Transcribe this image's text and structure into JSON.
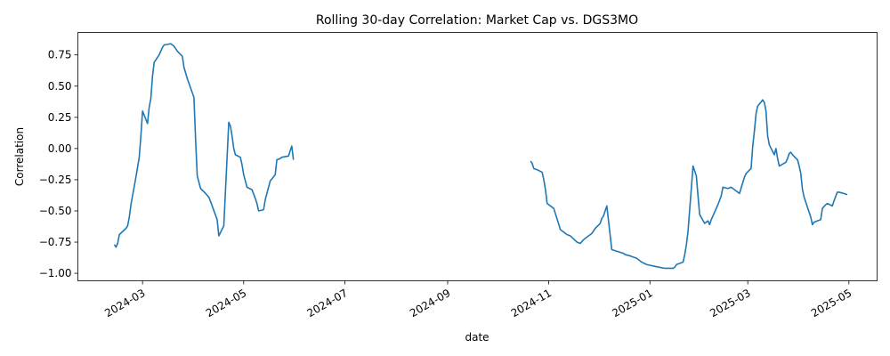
{
  "chart_data": {
    "type": "line",
    "title": "Rolling 30-day Correlation: Market Cap vs. DGS3MO",
    "xlabel": "date",
    "ylabel": "Correlation",
    "xlim": [
      "2024-01-22",
      "2025-05-18"
    ],
    "ylim": [
      -1.06,
      0.93
    ],
    "grid": false,
    "line_color": "#1f77b4",
    "x_ticks": [
      {
        "date": "2024-03-01",
        "label": "2024-03"
      },
      {
        "date": "2024-05-01",
        "label": "2024-05"
      },
      {
        "date": "2024-07-01",
        "label": "2024-07"
      },
      {
        "date": "2024-09-01",
        "label": "2024-09"
      },
      {
        "date": "2024-11-01",
        "label": "2024-11"
      },
      {
        "date": "2025-01-01",
        "label": "2025-01"
      },
      {
        "date": "2025-03-01",
        "label": "2025-03"
      },
      {
        "date": "2025-05-01",
        "label": "2025-05"
      }
    ],
    "y_ticks": [
      {
        "value": 0.75,
        "label": "0.75"
      },
      {
        "value": 0.5,
        "label": "0.50"
      },
      {
        "value": 0.25,
        "label": "0.25"
      },
      {
        "value": 0.0,
        "label": "0.00"
      },
      {
        "value": -0.25,
        "label": "−0.25"
      },
      {
        "value": -0.5,
        "label": "−0.50"
      },
      {
        "value": -0.75,
        "label": "−0.75"
      },
      {
        "value": -1.0,
        "label": "−1.00"
      }
    ],
    "segments": [
      {
        "x": [
          "2024-02-13",
          "2024-02-14",
          "2024-02-15",
          "2024-02-16",
          "2024-02-20",
          "2024-02-21",
          "2024-02-22",
          "2024-02-23",
          "2024-02-26",
          "2024-02-27",
          "2024-02-28",
          "2024-02-29",
          "2024-03-01",
          "2024-03-04",
          "2024-03-05",
          "2024-03-06",
          "2024-03-07",
          "2024-03-08",
          "2024-03-11",
          "2024-03-12",
          "2024-03-13",
          "2024-03-14",
          "2024-03-18",
          "2024-03-19",
          "2024-03-20",
          "2024-03-22",
          "2024-03-25",
          "2024-03-26",
          "2024-03-28",
          "2024-04-01",
          "2024-04-02",
          "2024-04-03",
          "2024-04-05",
          "2024-04-08",
          "2024-04-10",
          "2024-04-12",
          "2024-04-15",
          "2024-04-16",
          "2024-04-19",
          "2024-04-22",
          "2024-04-23",
          "2024-04-24",
          "2024-04-25",
          "2024-04-26",
          "2024-04-29",
          "2024-04-30",
          "2024-05-01",
          "2024-05-03",
          "2024-05-06",
          "2024-05-08",
          "2024-05-09",
          "2024-05-10",
          "2024-05-13",
          "2024-05-14",
          "2024-05-16",
          "2024-05-17",
          "2024-05-20",
          "2024-05-21",
          "2024-05-23",
          "2024-05-24",
          "2024-05-28",
          "2024-05-30",
          "2024-05-31"
        ],
        "y": [
          -0.77,
          -0.79,
          -0.76,
          -0.69,
          -0.64,
          -0.62,
          -0.55,
          -0.45,
          -0.23,
          -0.15,
          -0.07,
          0.1,
          0.3,
          0.2,
          0.33,
          0.4,
          0.58,
          0.69,
          0.75,
          0.78,
          0.81,
          0.83,
          0.84,
          0.83,
          0.82,
          0.78,
          0.74,
          0.65,
          0.56,
          0.41,
          0.07,
          -0.22,
          -0.32,
          -0.36,
          -0.39,
          -0.46,
          -0.57,
          -0.7,
          -0.62,
          0.21,
          0.18,
          0.1,
          0.0,
          -0.05,
          -0.07,
          -0.13,
          -0.21,
          -0.31,
          -0.33,
          -0.4,
          -0.44,
          -0.5,
          -0.49,
          -0.41,
          -0.31,
          -0.26,
          -0.21,
          -0.09,
          -0.08,
          -0.07,
          -0.06,
          0.02,
          -0.09
        ]
      },
      {
        "x": [
          "2024-10-21",
          "2024-10-22",
          "2024-10-23",
          "2024-10-25",
          "2024-10-28",
          "2024-10-29",
          "2024-10-30",
          "2024-10-31",
          "2024-11-04",
          "2024-11-08",
          "2024-11-12",
          "2024-11-14",
          "2024-11-18",
          "2024-11-20",
          "2024-11-22",
          "2024-11-25",
          "2024-11-27",
          "2024-11-29",
          "2024-12-02",
          "2024-12-03",
          "2024-12-04",
          "2024-12-06",
          "2024-12-09",
          "2024-12-16",
          "2024-12-17",
          "2024-12-20",
          "2024-12-24",
          "2024-12-27",
          "2024-12-30",
          "2025-01-06",
          "2025-01-10",
          "2025-01-15",
          "2025-01-16",
          "2025-01-17",
          "2025-01-21",
          "2025-01-22",
          "2025-01-23",
          "2025-01-24",
          "2025-01-27",
          "2025-01-29",
          "2025-01-30",
          "2025-01-31",
          "2025-02-03",
          "2025-02-05",
          "2025-02-06",
          "2025-02-07",
          "2025-02-10",
          "2025-02-11",
          "2025-02-13",
          "2025-02-14",
          "2025-02-17",
          "2025-02-19",
          "2025-02-21",
          "2025-02-24",
          "2025-02-27",
          "2025-02-28",
          "2025-03-03",
          "2025-03-04",
          "2025-03-05",
          "2025-03-06",
          "2025-03-07",
          "2025-03-10",
          "2025-03-11",
          "2025-03-12",
          "2025-03-13",
          "2025-03-14",
          "2025-03-17",
          "2025-03-18",
          "2025-03-19",
          "2025-03-20",
          "2025-03-24",
          "2025-03-25",
          "2025-03-26",
          "2025-03-27",
          "2025-03-28",
          "2025-03-31",
          "2025-04-01",
          "2025-04-02",
          "2025-04-03",
          "2025-04-04",
          "2025-04-07",
          "2025-04-08",
          "2025-04-09",
          "2025-04-10",
          "2025-04-14",
          "2025-04-15",
          "2025-04-17",
          "2025-04-18",
          "2025-04-21",
          "2025-04-22",
          "2025-04-24",
          "2025-04-25",
          "2025-04-28",
          "2025-04-30"
        ],
        "y": [
          -0.1,
          -0.12,
          -0.16,
          -0.17,
          -0.19,
          -0.25,
          -0.33,
          -0.44,
          -0.48,
          -0.65,
          -0.69,
          -0.7,
          -0.75,
          -0.76,
          -0.73,
          -0.7,
          -0.68,
          -0.64,
          -0.6,
          -0.56,
          -0.54,
          -0.46,
          -0.81,
          -0.84,
          -0.85,
          -0.86,
          -0.88,
          -0.91,
          -0.93,
          -0.95,
          -0.96,
          -0.96,
          -0.95,
          -0.93,
          -0.91,
          -0.85,
          -0.77,
          -0.66,
          -0.14,
          -0.22,
          -0.38,
          -0.53,
          -0.6,
          -0.58,
          -0.61,
          -0.57,
          -0.48,
          -0.45,
          -0.38,
          -0.31,
          -0.32,
          -0.31,
          -0.33,
          -0.36,
          -0.23,
          -0.2,
          -0.16,
          0.02,
          0.14,
          0.28,
          0.34,
          0.39,
          0.37,
          0.3,
          0.1,
          0.03,
          -0.05,
          0.0,
          -0.08,
          -0.14,
          -0.11,
          -0.08,
          -0.04,
          -0.03,
          -0.05,
          -0.09,
          -0.14,
          -0.2,
          -0.33,
          -0.39,
          -0.51,
          -0.55,
          -0.61,
          -0.59,
          -0.57,
          -0.48,
          -0.45,
          -0.44,
          -0.46,
          -0.42,
          -0.35,
          -0.35,
          -0.36,
          -0.37
        ]
      }
    ]
  }
}
